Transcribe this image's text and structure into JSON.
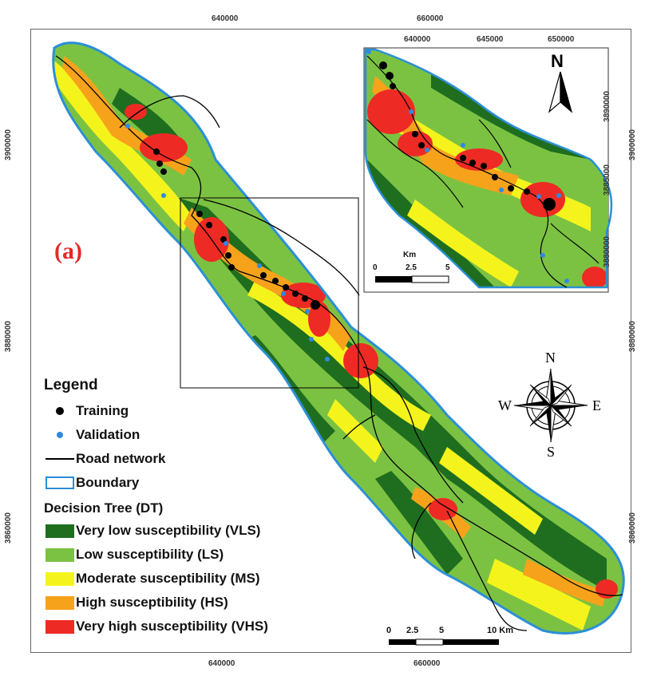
{
  "map": {
    "panel_label": "(a)",
    "axis_top": [
      "640000",
      "660000"
    ],
    "axis_bottom": [
      "640000",
      "660000"
    ],
    "axis_left": [
      "3900000",
      "3880000",
      "3860000"
    ],
    "axis_right": [
      "3900000",
      "3880000",
      "3860000"
    ]
  },
  "legend": {
    "title": "Legend",
    "training": "Training",
    "validation": "Validation",
    "road": "Road network",
    "boundary": "Boundary",
    "dt_title": "Decision Tree (DT)",
    "classes": [
      {
        "label": "Very low susceptibility (VLS)",
        "color": "#1f6e1f"
      },
      {
        "label": "Low susceptibility (LS)",
        "color": "#7cc242"
      },
      {
        "label": "Moderate susceptibility (MS)",
        "color": "#f4f41c"
      },
      {
        "label": "High susceptibility (HS)",
        "color": "#f7a21b"
      },
      {
        "label": "Very high susceptibility (VHS)",
        "color": "#ee2a24"
      }
    ]
  },
  "compass": {
    "n": "N",
    "s": "S",
    "e": "E",
    "w": "W"
  },
  "scalebar": {
    "labels": [
      "0",
      "2.5",
      "5",
      "10 Km"
    ]
  },
  "inset": {
    "north": "N",
    "axis_top": [
      "640000",
      "645000",
      "650000"
    ],
    "axis_right": [
      "3890000",
      "3885000",
      "3880000"
    ],
    "scale_unit": "Km",
    "scale_labels": [
      "0",
      "2.5",
      "5"
    ]
  },
  "colors": {
    "boundary": "#2b8fd6",
    "training": "#000000",
    "validation": "#2f8ae0"
  }
}
